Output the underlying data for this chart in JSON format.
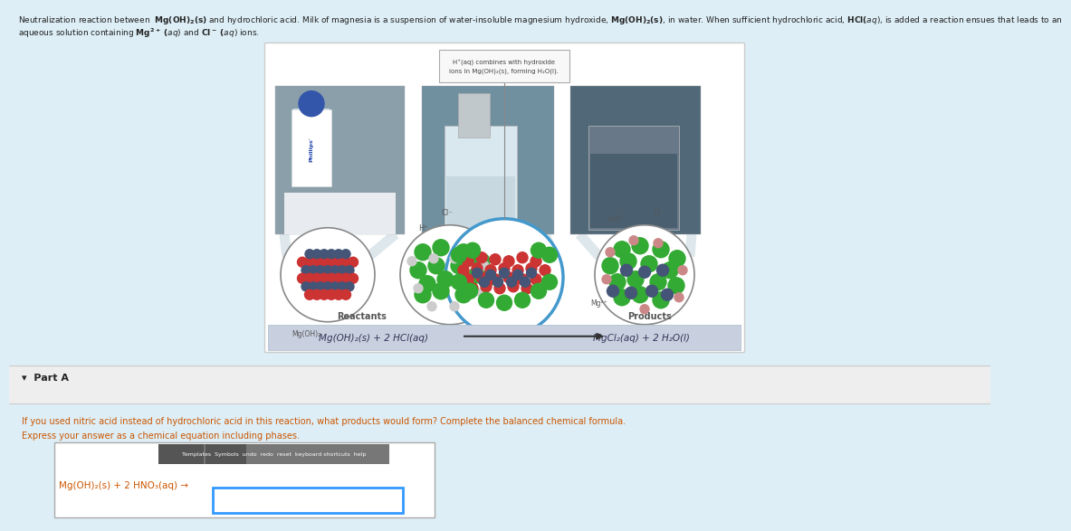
{
  "bg_color": "#ddeef6",
  "bg_color_bottom": "#f0f0f0",
  "text_color_dark": "#222222",
  "text_color_orange": "#cc5500",
  "text_color_blue": "#1155cc",
  "white_box_bg": "#ffffff",
  "white_box_border": "#cccccc",
  "part_a_bg": "#f5f5f5",
  "part_a_border_color": "#cccccc",
  "input_border_color": "#3399ff",
  "toolbar_dark": "#555555",
  "toolbar_mid": "#888888",
  "arrow_color": "#333333",
  "photo_left_bg": "#7a9aaa",
  "photo_left_fg": "#c8d8e0",
  "photo_mid_bg": "#9ab0b8",
  "photo_mid_fg": "#d0dce0",
  "photo_right_bg": "#607880",
  "photo_right_fg": "#90a8b0",
  "reactant_equation_bg": "#c8d0e0",
  "dot_red": "#cc3333",
  "dot_blue_dark": "#445577",
  "dot_green": "#33aa33",
  "dot_white_gray": "#dddddd",
  "dot_pink": "#cc8888",
  "circle_border_gray": "#888888",
  "circle_border_blue": "#4499cc",
  "header_line1": "Neutralization reaction between Mg(OH)",
  "header_bold_s": "2",
  "header_rest": "(s) and hydrochloric acid. Milk of magnesia is a suspension of water-insoluble magnesium hydroxide, Mg(OH)",
  "callout_text_line1": "H⁺(aq) combines with hydroxide",
  "callout_text_line2": "ions in Mg(OH)₂(s), forming H₂O(l).",
  "label_mg_oh2": "Mg(OH)₂",
  "label_reactants": "Reactants",
  "label_products": "Products",
  "eq_reactants": "Mg(OH)₂(s) + 2 HCl(aq)",
  "eq_products": "MgCl₂(aq) + 2 H₂O(l)",
  "label_cl_minus_left": "Cl⁻",
  "label_h_plus": "H⁺",
  "label_cl_minus_right": "Cl⁻",
  "label_h2o": "H₂O",
  "label_mg2plus": "Mg²⁺",
  "part_a_text": "▾  Part A",
  "question1": "If you used nitric acid instead of hydrochloric acid in this reaction, what products would form? Complete the balanced chemical formula.",
  "question2": "Express your answer as a chemical equation including phases.",
  "eq_prefix": "Mg(OH)₂(s) + 2 HNO₃(aq) →",
  "toolbar_label": "Templates  Symbols  undo  redo  reset  keyboard shortcuts  help"
}
